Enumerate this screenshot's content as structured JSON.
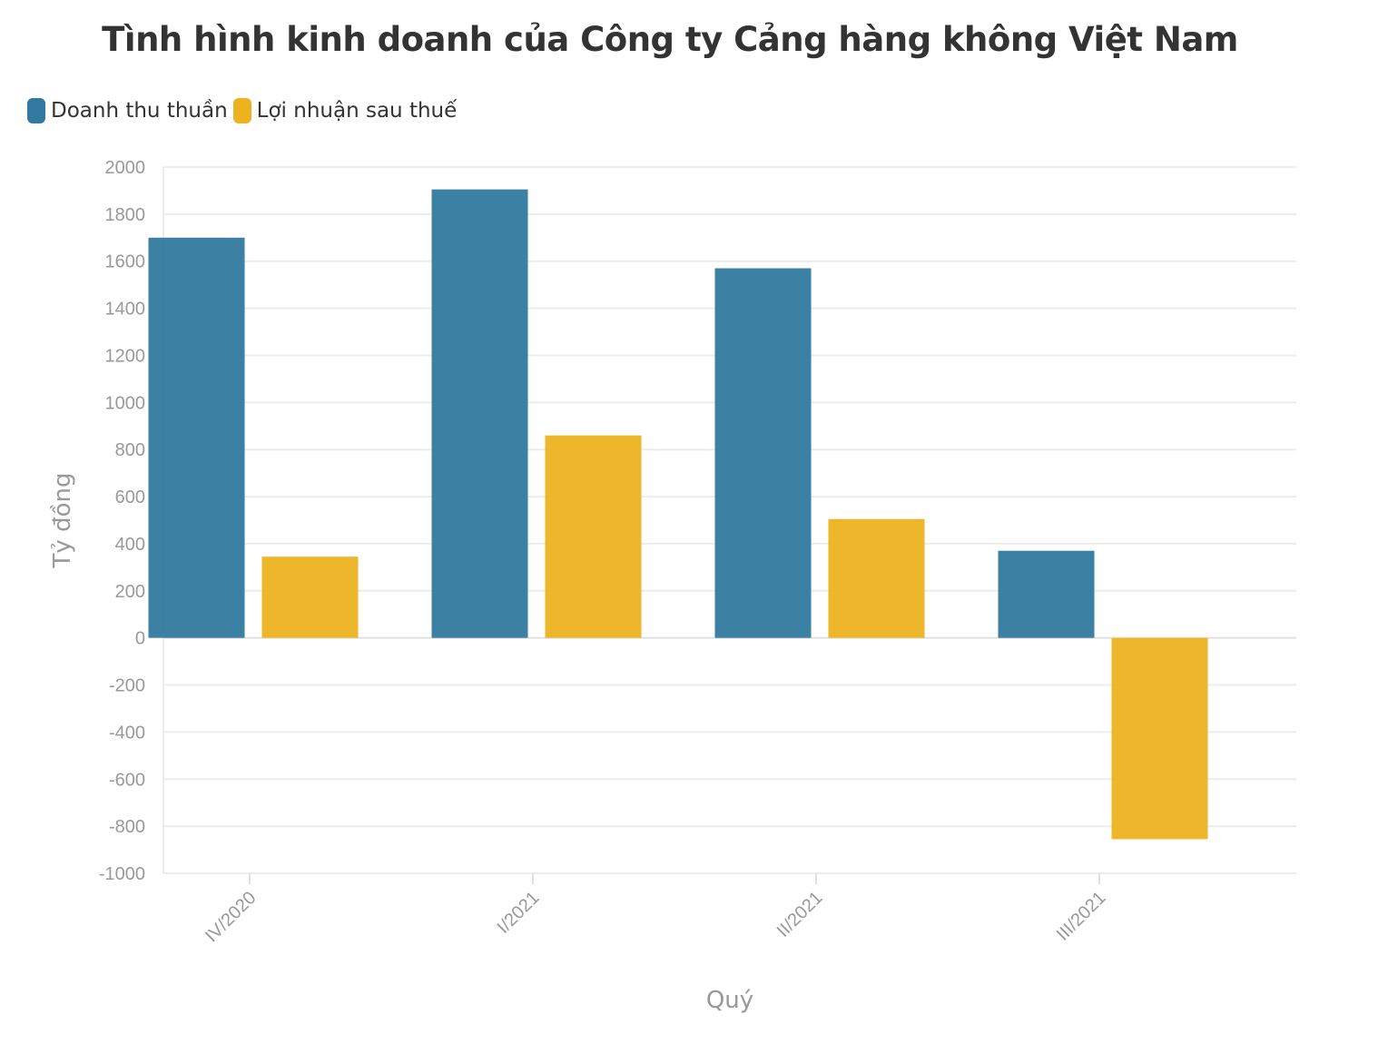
{
  "chart_data": {
    "type": "bar",
    "title": "Tình hình kinh doanh của Công ty Cảng hàng không Việt Nam",
    "xlabel": "Quý",
    "ylabel": "Tỷ đồng",
    "categories": [
      "IV/2020",
      "I/2021",
      "II/2021",
      "III/2021"
    ],
    "series": [
      {
        "name": "Doanh thu thuần",
        "color": "#32799f",
        "values": [
          1700,
          1905,
          1570,
          370
        ]
      },
      {
        "name": "Lợi nhuận sau thuế",
        "color": "#edb21f",
        "values": [
          345,
          860,
          505,
          -855
        ]
      }
    ],
    "ylim": [
      -1000,
      2000
    ],
    "yticks": [
      "2000",
      "1800",
      "1600",
      "1400",
      "1200",
      "1000",
      "800",
      "600",
      "400",
      "200",
      "0",
      "-200",
      "-400",
      "-600",
      "-800",
      "-1000"
    ],
    "grid": true,
    "legend_position": "top-left"
  }
}
